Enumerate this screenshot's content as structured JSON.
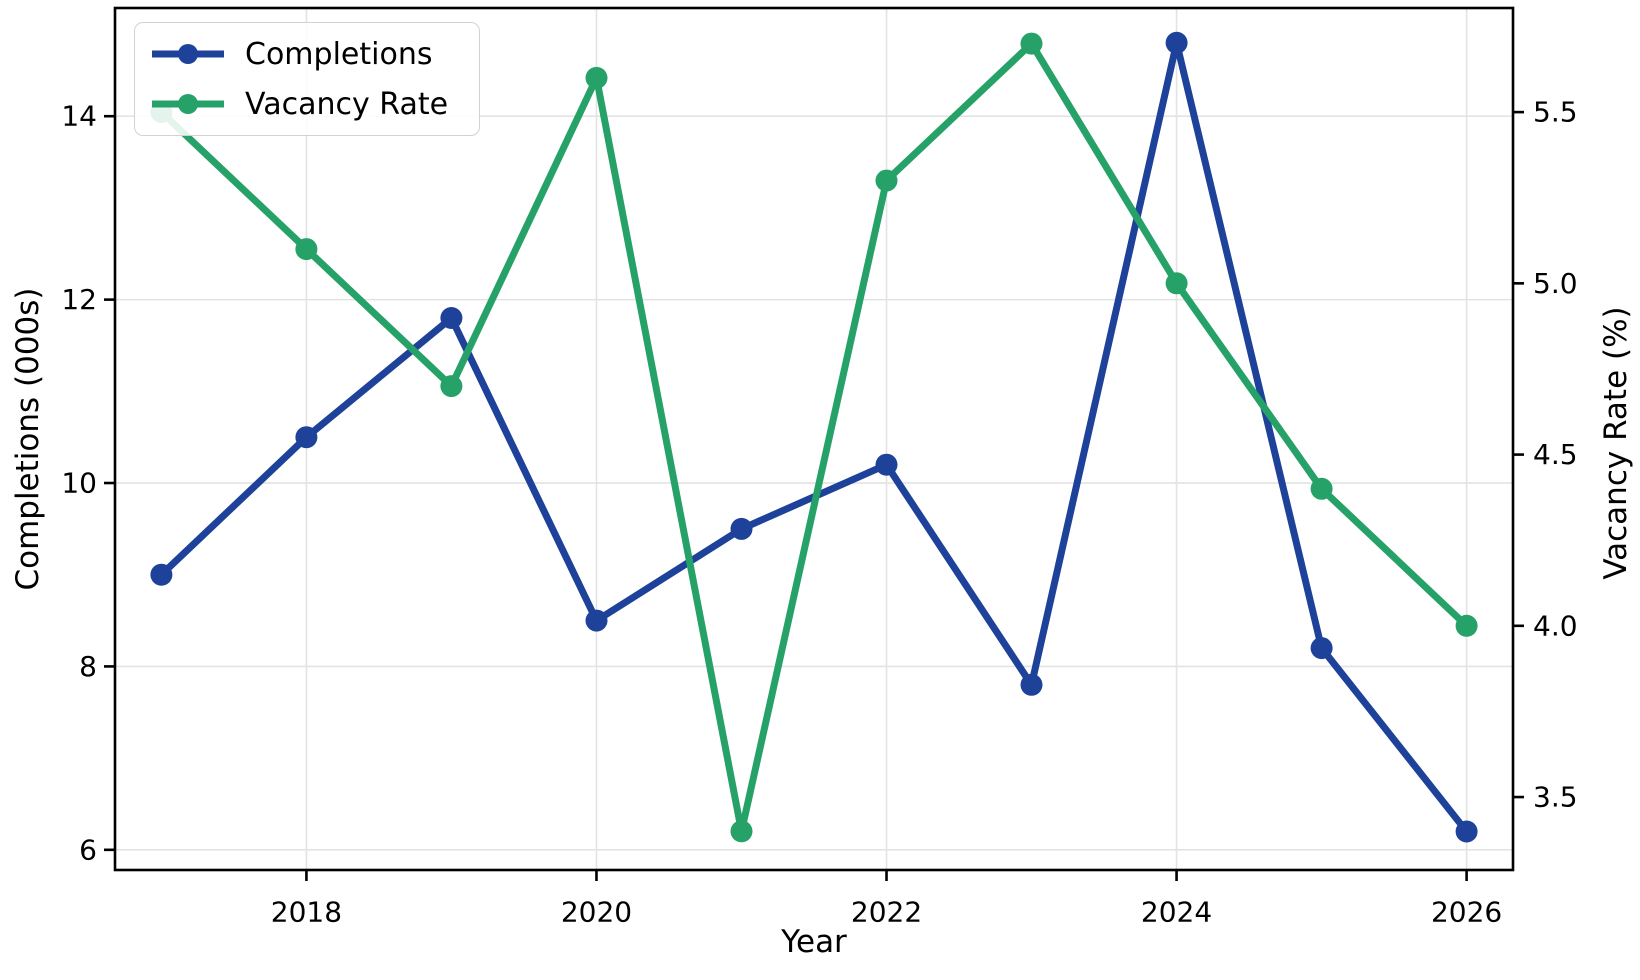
{
  "chart_data": {
    "type": "line",
    "title": "",
    "xlabel": "Year",
    "ylabel_left": "Completions (000s)",
    "ylabel_right": "Vacancy Rate (%)",
    "x": [
      2017,
      2018,
      2019,
      2020,
      2021,
      2022,
      2023,
      2024,
      2025,
      2026
    ],
    "series": [
      {
        "name": "Completions",
        "axis": "left",
        "color": "#1e429a",
        "values": [
          9.0,
          10.5,
          11.8,
          8.5,
          9.5,
          10.2,
          7.8,
          14.8,
          8.2,
          6.2
        ]
      },
      {
        "name": "Vacancy Rate",
        "axis": "right",
        "color": "#26a269",
        "values": [
          5.5,
          5.1,
          4.7,
          5.6,
          3.4,
          5.3,
          5.7,
          5.0,
          4.4,
          4.0
        ]
      }
    ],
    "x_ticks": {
      "values": [
        2018,
        2020,
        2022,
        2024,
        2026
      ],
      "labels": [
        "2018",
        "2020",
        "2022",
        "2024",
        "2026"
      ]
    },
    "y_ticks_left": {
      "values": [
        6,
        8,
        10,
        12,
        14
      ],
      "labels": [
        "6",
        "8",
        "10",
        "12",
        "14"
      ]
    },
    "y_ticks_right": {
      "values": [
        3.5,
        4.0,
        4.5,
        5.0,
        5.5
      ],
      "labels": [
        "3.5",
        "4.0",
        "4.5",
        "5.0",
        "5.5"
      ]
    },
    "xlim": [
      2016.68,
      2026.32
    ],
    "ylim_left": [
      5.78,
      15.18
    ],
    "ylim_right": [
      3.287,
      5.804
    ],
    "grid": true,
    "legend_position": "top-left",
    "colors": {
      "grid": "#e3e3e3",
      "spine": "#000000",
      "background": "#ffffff",
      "text": "#000000"
    }
  }
}
